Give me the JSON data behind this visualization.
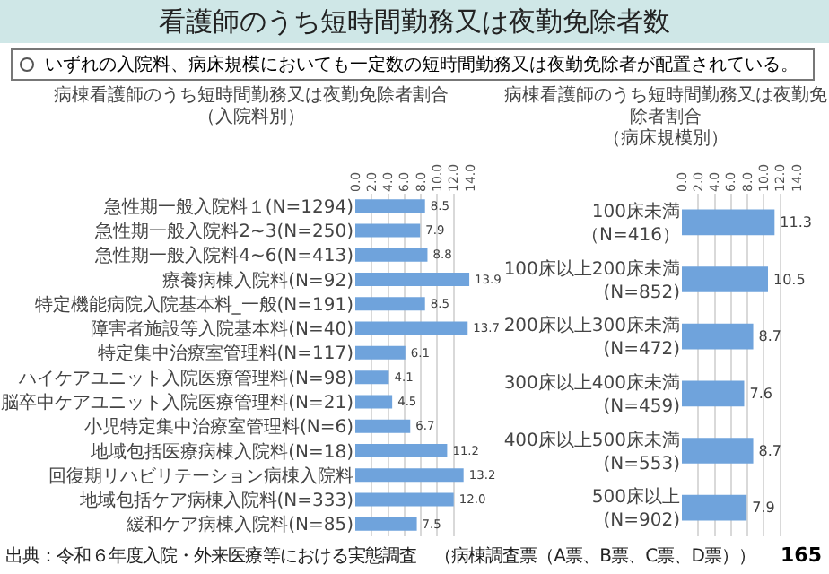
{
  "chart_data": [
    {
      "type": "other",
      "title": "看護師のうち短時間勤務又は夜勤免除者数",
      "annotations": [
        "いずれの入院料、病床規模においても一定数の短時間勤務又は夜勤免除者が配置されている。",
        "出典：令和６年度入院・外来医療等における実態調査　（病棟調査票（A票、B票、C票、D票））",
        "165"
      ]
    },
    {
      "type": "bar",
      "orientation": "horizontal",
      "title": "病棟看護師のうち短時間勤務又は夜勤免除者割合",
      "subtitle": "（入院料別）",
      "categories": [
        "急性期一般入院料１(N=1294)",
        "急性期一般入院料2~3(N=250)",
        "急性期一般入院料4~6(N=413)",
        "療養病棟入院料(N=92)",
        "特定機能病院入院基本料_一般(N=191)",
        "障害者施設等入院基本料(N=40)",
        "特定集中治療室管理料(N=117)",
        "ハイケアユニット入院医療管理料(N=98)",
        "脳卒中ケアユニット入院医療管理料(N=21)",
        "小児特定集中治療室管理料(N=6)",
        "地域包括医療病棟入院料(N=18)",
        "回復期リハビリテーション病棟入院料",
        "地域包括ケア病棟入院料(N=333)",
        "緩和ケア病棟入院料(N=85)"
      ],
      "values": [
        8.5,
        7.9,
        8.8,
        13.9,
        8.5,
        13.7,
        6.1,
        4.1,
        4.5,
        6.7,
        11.2,
        13.2,
        12.0,
        7.5
      ],
      "value_labels": [
        "8.5",
        "7.9",
        "8.8",
        "13.9",
        "8.5",
        "13.7",
        "6.1",
        "4.1",
        "4.5",
        "6.7",
        "11.2",
        "13.2",
        "12.0",
        "7.5"
      ],
      "color": "#6fa3dc",
      "xlim": [
        0,
        14
      ],
      "xticks": [
        {
          "value": 0,
          "label": "0.0"
        },
        {
          "value": 2,
          "label": "2.0"
        },
        {
          "value": 4,
          "label": "4.0"
        },
        {
          "value": 6,
          "label": "6.0"
        },
        {
          "value": 8,
          "label": "8.0"
        },
        {
          "value": 10,
          "label": "10.0"
        },
        {
          "value": 12,
          "label": "12.0"
        },
        {
          "value": 14,
          "label": "14.0"
        }
      ],
      "grid": "x"
    },
    {
      "type": "bar",
      "orientation": "horizontal",
      "title": "病棟看護師のうち短時間勤務又は夜勤免除者割合",
      "subtitle": "（病床規模別）",
      "categories": [
        "100床未満（N=416）",
        "100床以上200床未満(N=852)",
        "200床以上300床未満(N=472)",
        "300床以上400床未満(N=459)",
        "400床以上500床未満(N=553)",
        "500床以上(N=902)"
      ],
      "values": [
        11.3,
        10.5,
        8.7,
        7.6,
        8.7,
        7.9
      ],
      "value_labels": [
        "11.3",
        "10.5",
        "8.7",
        "7.6",
        "8.7",
        "7.9"
      ],
      "color": "#6fa3dc",
      "xlim": [
        0,
        14
      ],
      "xticks": [
        {
          "value": 0,
          "label": "0.0"
        },
        {
          "value": 2,
          "label": "2.0"
        },
        {
          "value": 4,
          "label": "4.0"
        },
        {
          "value": 6,
          "label": "6.0"
        },
        {
          "value": 8,
          "label": "8.0"
        },
        {
          "value": 10,
          "label": "10.0"
        },
        {
          "value": 12,
          "label": "12.0"
        },
        {
          "value": 14,
          "label": "14.0"
        }
      ],
      "grid": "x"
    }
  ]
}
